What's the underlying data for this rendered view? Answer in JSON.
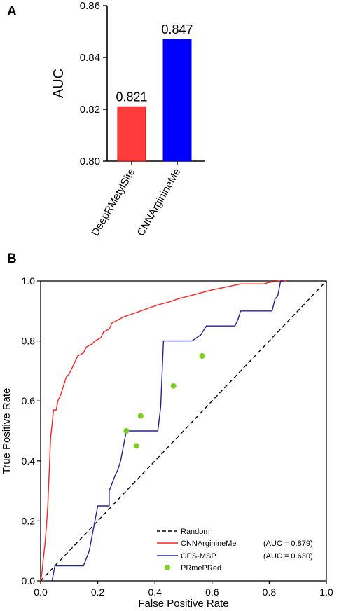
{
  "panels": {
    "a": "A",
    "b": "B"
  },
  "chart_data": [
    {
      "type": "bar",
      "panel": "A",
      "categories": [
        "DeepRMetylSite",
        "CNNArginineMe"
      ],
      "values": [
        0.821,
        0.847
      ],
      "value_labels": [
        "0.821",
        "0.847"
      ],
      "colors": [
        "#ff3b3b",
        "#0000ff"
      ],
      "ylabel": "AUC",
      "ylim": [
        0.8,
        0.86
      ],
      "yticks": [
        "0.80",
        "0.82",
        "0.84",
        "0.86"
      ]
    },
    {
      "type": "line",
      "panel": "B",
      "xlabel": "False Positive Rate",
      "ylabel": "True Positive Rate",
      "xlim": [
        0.0,
        1.0
      ],
      "ylim": [
        0.0,
        1.0
      ],
      "xticks": [
        "0.0",
        "0.2",
        "0.4",
        "0.6",
        "0.8",
        "1.0"
      ],
      "yticks": [
        "0.0",
        "0.2",
        "0.4",
        "0.6",
        "0.8",
        "1.0"
      ],
      "legend_position": "lower-right",
      "series": [
        {
          "name": "Random",
          "style": "dashed",
          "color": "#000000",
          "points": [
            [
              0.0,
              0.0
            ],
            [
              1.0,
              1.0
            ]
          ]
        },
        {
          "name": "CNNArginineMe",
          "auc": "(AUC = 0.879)",
          "color": "#ff2020",
          "points": [
            [
              0.0,
              0.0
            ],
            [
              0.005,
              0.03
            ],
            [
              0.01,
              0.08
            ],
            [
              0.015,
              0.12
            ],
            [
              0.02,
              0.18
            ],
            [
              0.025,
              0.25
            ],
            [
              0.03,
              0.36
            ],
            [
              0.035,
              0.48
            ],
            [
              0.04,
              0.52
            ],
            [
              0.045,
              0.57
            ],
            [
              0.055,
              0.57
            ],
            [
              0.06,
              0.6
            ],
            [
              0.07,
              0.62
            ],
            [
              0.08,
              0.65
            ],
            [
              0.09,
              0.68
            ],
            [
              0.1,
              0.69
            ],
            [
              0.11,
              0.71
            ],
            [
              0.12,
              0.73
            ],
            [
              0.13,
              0.75
            ],
            [
              0.15,
              0.76
            ],
            [
              0.16,
              0.78
            ],
            [
              0.18,
              0.79
            ],
            [
              0.19,
              0.8
            ],
            [
              0.21,
              0.81
            ],
            [
              0.22,
              0.83
            ],
            [
              0.24,
              0.84
            ],
            [
              0.25,
              0.86
            ],
            [
              0.27,
              0.87
            ],
            [
              0.29,
              0.88
            ],
            [
              0.32,
              0.89
            ],
            [
              0.35,
              0.9
            ],
            [
              0.38,
              0.91
            ],
            [
              0.41,
              0.92
            ],
            [
              0.45,
              0.93
            ],
            [
              0.48,
              0.94
            ],
            [
              0.52,
              0.95
            ],
            [
              0.56,
              0.96
            ],
            [
              0.6,
              0.97
            ],
            [
              0.65,
              0.98
            ],
            [
              0.7,
              0.99
            ],
            [
              0.78,
              0.99
            ],
            [
              0.8,
              0.995
            ],
            [
              0.84,
              1.0
            ],
            [
              0.86,
              1.0
            ]
          ]
        },
        {
          "name": "GPS-MSP",
          "auc": "(AUC = 0.630)",
          "color": "#22229a",
          "points": [
            [
              0.04,
              0.0
            ],
            [
              0.05,
              0.05
            ],
            [
              0.15,
              0.05
            ],
            [
              0.17,
              0.1
            ],
            [
              0.19,
              0.2
            ],
            [
              0.2,
              0.25
            ],
            [
              0.24,
              0.25
            ],
            [
              0.24,
              0.3
            ],
            [
              0.26,
              0.35
            ],
            [
              0.27,
              0.37
            ],
            [
              0.28,
              0.4
            ],
            [
              0.29,
              0.45
            ],
            [
              0.3,
              0.5
            ],
            [
              0.32,
              0.5
            ],
            [
              0.325,
              0.5
            ],
            [
              0.41,
              0.5
            ],
            [
              0.42,
              0.58
            ],
            [
              0.43,
              0.8
            ],
            [
              0.53,
              0.8
            ],
            [
              0.56,
              0.82
            ],
            [
              0.58,
              0.85
            ],
            [
              0.68,
              0.85
            ],
            [
              0.69,
              0.87
            ],
            [
              0.7,
              0.9
            ],
            [
              0.81,
              0.9
            ],
            [
              0.82,
              0.94
            ],
            [
              0.83,
              0.95
            ],
            [
              0.84,
              1.0
            ],
            [
              0.85,
              1.0
            ]
          ]
        },
        {
          "name": "PRmePRed",
          "style": "points",
          "color": "#7dcd1e",
          "points": [
            [
              0.3,
              0.5
            ],
            [
              0.335,
              0.45
            ],
            [
              0.35,
              0.55
            ],
            [
              0.465,
              0.65
            ],
            [
              0.565,
              0.75
            ]
          ]
        }
      ]
    }
  ]
}
